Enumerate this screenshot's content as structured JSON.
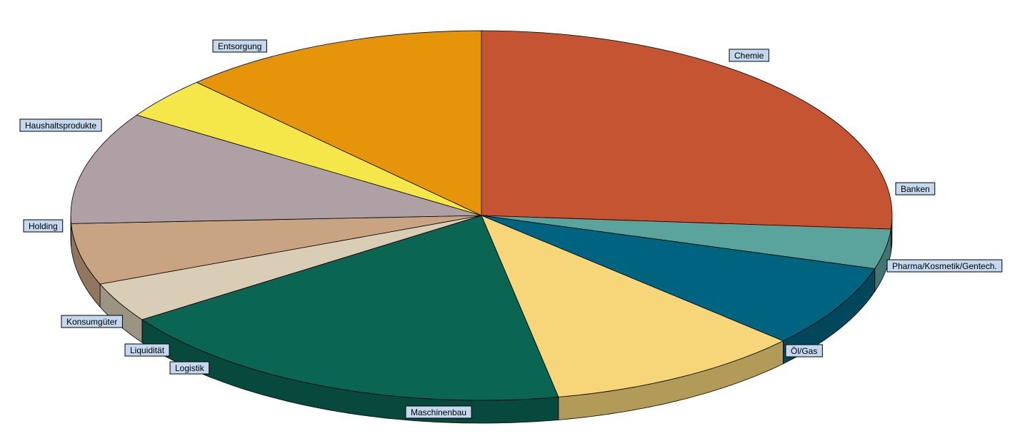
{
  "chart_data": {
    "type": "pie",
    "style": "3d",
    "title": "",
    "slices": [
      {
        "label": "Chemie",
        "value": 27.9,
        "color": "#c45432"
      },
      {
        "label": "Banken",
        "value": 3.7,
        "color": "#5ba39d"
      },
      {
        "label": "Pharma/Kosmetik/Gentech.",
        "value": 7.7,
        "color": "#00637f"
      },
      {
        "label": "Öl/Gas",
        "value": 10.8,
        "color": "#f7d67a"
      },
      {
        "label": "Maschinenbau",
        "value": 19.7,
        "color": "#0a6553"
      },
      {
        "label": "Logistik",
        "value": 3.7,
        "color": "#d9cdb5"
      },
      {
        "label": "Liquidität",
        "value": 0,
        "color": "#bfa98a"
      },
      {
        "label": "Konsumgüter",
        "value": 5.7,
        "color": "#c8a482"
      },
      {
        "label": "Holding",
        "value": 10.5,
        "color": "#afa0a5"
      },
      {
        "label": "Haushaltsprodukte",
        "value": 3.9,
        "color": "#f5e64a"
      },
      {
        "label": "Entsorgung",
        "value": 13.0,
        "color": "#e6950a"
      }
    ],
    "start_angle_deg": 90,
    "direction": "clockwise",
    "legend": "none",
    "data_labels": "outside"
  }
}
